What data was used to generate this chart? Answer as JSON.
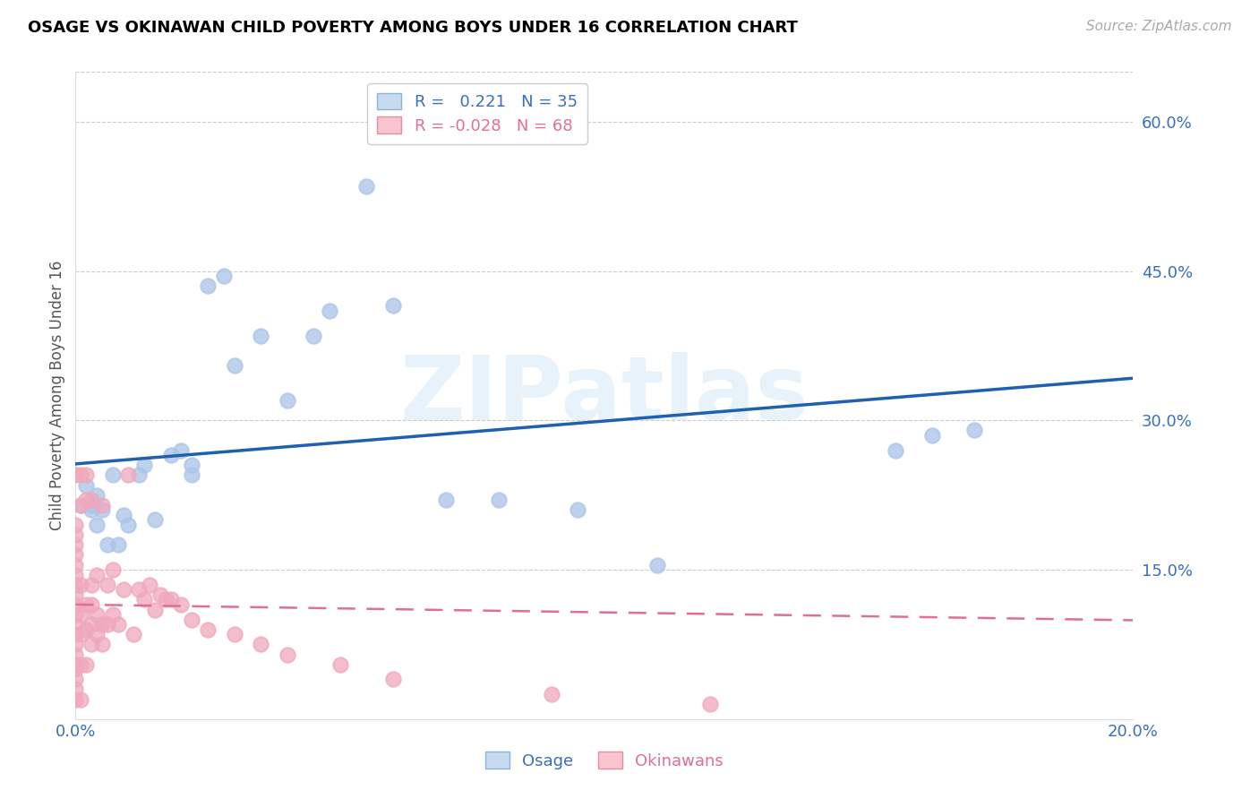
{
  "title": "OSAGE VS OKINAWAN CHILD POVERTY AMONG BOYS UNDER 16 CORRELATION CHART",
  "source": "Source: ZipAtlas.com",
  "ylabel": "Child Poverty Among Boys Under 16",
  "xlim": [
    0.0,
    0.2
  ],
  "ylim": [
    0.0,
    0.65
  ],
  "xtick_positions": [
    0.0,
    0.04,
    0.08,
    0.12,
    0.16,
    0.2
  ],
  "xticklabels": [
    "0.0%",
    "",
    "",
    "",
    "",
    "20.0%"
  ],
  "ytick_positions": [
    0.15,
    0.3,
    0.45,
    0.6
  ],
  "ytick_labels": [
    "15.0%",
    "30.0%",
    "45.0%",
    "60.0%"
  ],
  "osage_color": "#aac4e8",
  "okinawan_color": "#f0a8bc",
  "osage_line_color": "#2060b0",
  "okinawan_line_color": "#e07090",
  "legend_osage_fill": "#c8daf0",
  "legend_okinawan_fill": "#f9c4d0",
  "watermark": "ZIPatlas",
  "grid_color": "#cccccc",
  "osage_x": [
    0.001,
    0.002,
    0.003,
    0.003,
    0.004,
    0.004,
    0.005,
    0.006,
    0.007,
    0.008,
    0.009,
    0.01,
    0.012,
    0.013,
    0.015,
    0.018,
    0.02,
    0.022,
    0.022,
    0.025,
    0.028,
    0.03,
    0.035,
    0.04,
    0.045,
    0.048,
    0.055,
    0.06,
    0.07,
    0.08,
    0.095,
    0.11,
    0.155,
    0.162,
    0.17
  ],
  "osage_y": [
    0.215,
    0.235,
    0.215,
    0.21,
    0.225,
    0.195,
    0.21,
    0.175,
    0.245,
    0.175,
    0.205,
    0.195,
    0.245,
    0.255,
    0.2,
    0.265,
    0.27,
    0.245,
    0.255,
    0.435,
    0.445,
    0.355,
    0.385,
    0.32,
    0.385,
    0.41,
    0.535,
    0.415,
    0.22,
    0.22,
    0.21,
    0.155,
    0.27,
    0.285,
    0.29
  ],
  "okinawan_x": [
    0.0,
    0.0,
    0.0,
    0.0,
    0.0,
    0.0,
    0.0,
    0.0,
    0.0,
    0.0,
    0.0,
    0.0,
    0.0,
    0.0,
    0.0,
    0.0,
    0.0,
    0.0,
    0.0,
    0.0,
    0.001,
    0.001,
    0.001,
    0.001,
    0.001,
    0.001,
    0.001,
    0.002,
    0.002,
    0.002,
    0.002,
    0.002,
    0.003,
    0.003,
    0.003,
    0.003,
    0.003,
    0.004,
    0.004,
    0.004,
    0.005,
    0.005,
    0.005,
    0.006,
    0.006,
    0.007,
    0.007,
    0.008,
    0.009,
    0.01,
    0.011,
    0.012,
    0.013,
    0.014,
    0.015,
    0.016,
    0.017,
    0.018,
    0.02,
    0.022,
    0.025,
    0.03,
    0.035,
    0.04,
    0.05,
    0.06,
    0.09,
    0.12
  ],
  "okinawan_y": [
    0.02,
    0.03,
    0.04,
    0.05,
    0.055,
    0.065,
    0.075,
    0.085,
    0.095,
    0.105,
    0.115,
    0.125,
    0.135,
    0.145,
    0.155,
    0.165,
    0.175,
    0.185,
    0.195,
    0.245,
    0.02,
    0.055,
    0.085,
    0.105,
    0.135,
    0.215,
    0.245,
    0.055,
    0.09,
    0.115,
    0.22,
    0.245,
    0.075,
    0.095,
    0.115,
    0.135,
    0.22,
    0.085,
    0.105,
    0.145,
    0.075,
    0.095,
    0.215,
    0.095,
    0.135,
    0.105,
    0.15,
    0.095,
    0.13,
    0.245,
    0.085,
    0.13,
    0.12,
    0.135,
    0.11,
    0.125,
    0.12,
    0.12,
    0.115,
    0.1,
    0.09,
    0.085,
    0.075,
    0.065,
    0.055,
    0.04,
    0.025,
    0.015
  ]
}
